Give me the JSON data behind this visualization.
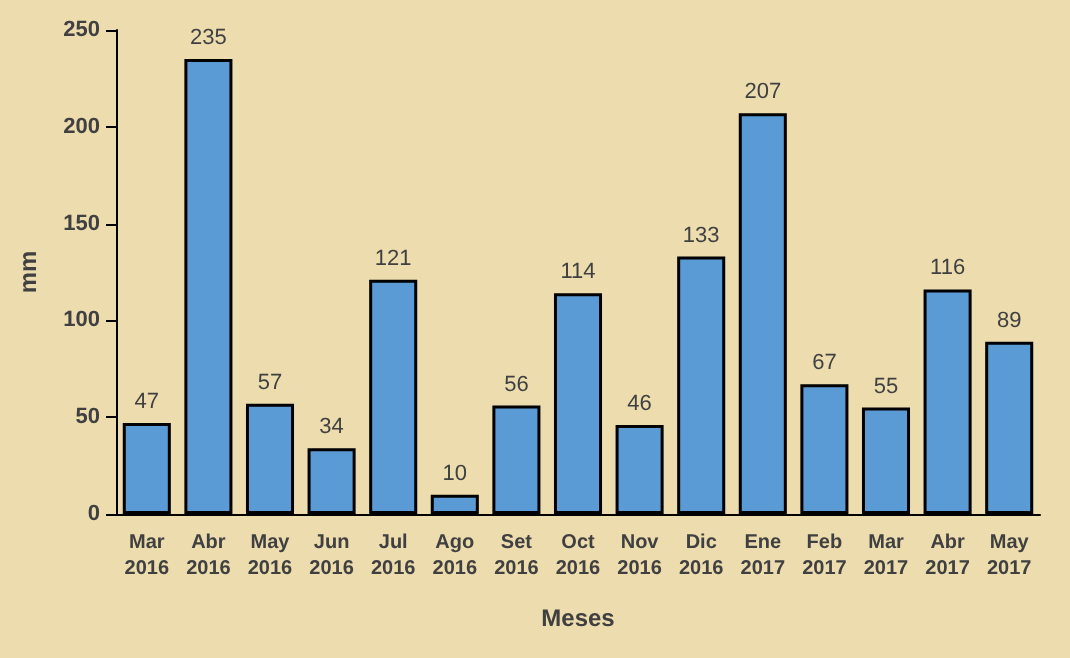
{
  "chart_data": {
    "type": "bar",
    "xlabel": "Meses",
    "ylabel": "mm",
    "categories": [
      "Mar\n2016",
      "Abr\n2016",
      "May\n2016",
      "Jun\n2016",
      "Jul\n2016",
      "Ago\n2016",
      "Set\n2016",
      "Oct\n2016",
      "Nov\n2016",
      "Dic\n2016",
      "Ene\n2017",
      "Feb\n2017",
      "Mar\n2017",
      "Abr\n2017",
      "May\n2017"
    ],
    "values": [
      47,
      235,
      57,
      34,
      121,
      10,
      56,
      114,
      46,
      133,
      207,
      67,
      55,
      116,
      89
    ],
    "color": "#5b9bd5",
    "ylim": [
      0,
      250
    ],
    "yticks": [
      0,
      50,
      100,
      150,
      200,
      250
    ],
    "grid": false,
    "data_labels": true
  }
}
